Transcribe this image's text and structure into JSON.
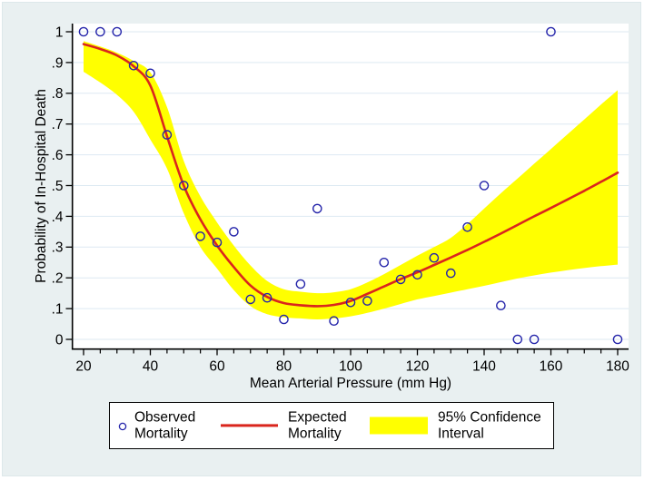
{
  "figure": {
    "canvas_color": "#e9f0f1",
    "page_color": "#ffffff"
  },
  "chart_data": {
    "type": "scatter",
    "title": "",
    "xlabel": "Mean Arterial Pressure (mm Hg)",
    "ylabel": "Probability of In-Hospital Death",
    "xlim": [
      16.5,
      183.3
    ],
    "ylim": [
      -0.03,
      1.027
    ],
    "x_major_ticks": [
      20,
      40,
      60,
      80,
      100,
      120,
      140,
      160,
      180
    ],
    "x_minor_tick_step": 5,
    "y_ticks": [
      0,
      0.1,
      0.2,
      0.3,
      0.4,
      0.5,
      0.6,
      0.7,
      0.8,
      0.9,
      1
    ],
    "y_tick_labels": [
      "0",
      ".1",
      ".2",
      ".3",
      ".4",
      ".5",
      ".6",
      ".7",
      ".8",
      ".9",
      "1"
    ],
    "grid": "horizontal",
    "legend_position": "bottom",
    "colors": {
      "plot_bg": "#ffffff",
      "grid": "#dde9f2",
      "axis": "#000000",
      "marker": "#2424aa",
      "line": "#da251d",
      "band": "#ffff00",
      "text": "#000000"
    },
    "series": [
      {
        "name": "Observed Mortality",
        "kind": "scatter",
        "marker": "hollow-circle",
        "points": [
          [
            20,
            1
          ],
          [
            25,
            1
          ],
          [
            30,
            1
          ],
          [
            35,
            0.89
          ],
          [
            40,
            0.865
          ],
          [
            45,
            0.665
          ],
          [
            50,
            0.5
          ],
          [
            55,
            0.335
          ],
          [
            60,
            0.315
          ],
          [
            65,
            0.35
          ],
          [
            70,
            0.13
          ],
          [
            75,
            0.135
          ],
          [
            80,
            0.065
          ],
          [
            85,
            0.18
          ],
          [
            90,
            0.425
          ],
          [
            95,
            0.06
          ],
          [
            100,
            0.12
          ],
          [
            105,
            0.125
          ],
          [
            110,
            0.25
          ],
          [
            115,
            0.195
          ],
          [
            120,
            0.21
          ],
          [
            125,
            0.265
          ],
          [
            130,
            0.215
          ],
          [
            135,
            0.365
          ],
          [
            140,
            0.5
          ],
          [
            145,
            0.11
          ],
          [
            150,
            0
          ],
          [
            155,
            0
          ],
          [
            160,
            1
          ],
          [
            180,
            0
          ]
        ]
      },
      {
        "name": "Expected Mortality",
        "kind": "line",
        "points": [
          [
            20,
            0.96
          ],
          [
            25,
            0.944
          ],
          [
            30,
            0.923
          ],
          [
            35,
            0.888
          ],
          [
            40,
            0.825
          ],
          [
            45,
            0.66
          ],
          [
            50,
            0.5
          ],
          [
            55,
            0.39
          ],
          [
            60,
            0.305
          ],
          [
            65,
            0.235
          ],
          [
            70,
            0.175
          ],
          [
            75,
            0.138
          ],
          [
            80,
            0.118
          ],
          [
            85,
            0.111
          ],
          [
            90,
            0.108
          ],
          [
            95,
            0.112
          ],
          [
            100,
            0.125
          ],
          [
            105,
            0.148
          ],
          [
            110,
            0.172
          ],
          [
            115,
            0.196
          ],
          [
            120,
            0.218
          ],
          [
            125,
            0.242
          ],
          [
            130,
            0.266
          ],
          [
            135,
            0.291
          ],
          [
            140,
            0.317
          ],
          [
            145,
            0.344
          ],
          [
            150,
            0.372
          ],
          [
            155,
            0.4
          ],
          [
            160,
            0.427
          ],
          [
            165,
            0.455
          ],
          [
            170,
            0.483
          ],
          [
            175,
            0.512
          ],
          [
            180,
            0.542
          ]
        ]
      },
      {
        "name": "95% Confidence Interval",
        "kind": "band",
        "upper": [
          [
            20,
            0.97
          ],
          [
            25,
            0.952
          ],
          [
            30,
            0.932
          ],
          [
            35,
            0.905
          ],
          [
            40,
            0.868
          ],
          [
            45,
            0.755
          ],
          [
            50,
            0.58
          ],
          [
            55,
            0.465
          ],
          [
            60,
            0.38
          ],
          [
            65,
            0.305
          ],
          [
            70,
            0.24
          ],
          [
            75,
            0.19
          ],
          [
            80,
            0.163
          ],
          [
            85,
            0.155
          ],
          [
            90,
            0.15
          ],
          [
            95,
            0.153
          ],
          [
            100,
            0.163
          ],
          [
            105,
            0.185
          ],
          [
            110,
            0.212
          ],
          [
            115,
            0.242
          ],
          [
            120,
            0.272
          ],
          [
            125,
            0.3
          ],
          [
            130,
            0.33
          ],
          [
            135,
            0.375
          ],
          [
            140,
            0.425
          ],
          [
            145,
            0.475
          ],
          [
            150,
            0.523
          ],
          [
            155,
            0.571
          ],
          [
            160,
            0.619
          ],
          [
            165,
            0.667
          ],
          [
            170,
            0.715
          ],
          [
            175,
            0.763
          ],
          [
            180,
            0.81
          ]
        ],
        "lower": [
          [
            20,
            0.87
          ],
          [
            25,
            0.835
          ],
          [
            30,
            0.795
          ],
          [
            35,
            0.74
          ],
          [
            40,
            0.65
          ],
          [
            45,
            0.555
          ],
          [
            50,
            0.41
          ],
          [
            55,
            0.3
          ],
          [
            60,
            0.23
          ],
          [
            65,
            0.16
          ],
          [
            70,
            0.108
          ],
          [
            75,
            0.082
          ],
          [
            80,
            0.072
          ],
          [
            85,
            0.068
          ],
          [
            90,
            0.065
          ],
          [
            95,
            0.068
          ],
          [
            100,
            0.075
          ],
          [
            105,
            0.086
          ],
          [
            110,
            0.1
          ],
          [
            115,
            0.115
          ],
          [
            120,
            0.13
          ],
          [
            125,
            0.141
          ],
          [
            130,
            0.152
          ],
          [
            135,
            0.163
          ],
          [
            140,
            0.174
          ],
          [
            145,
            0.186
          ],
          [
            150,
            0.198
          ],
          [
            155,
            0.208
          ],
          [
            160,
            0.217
          ],
          [
            165,
            0.225
          ],
          [
            170,
            0.232
          ],
          [
            175,
            0.238
          ],
          [
            180,
            0.243
          ]
        ]
      }
    ]
  },
  "legend": {
    "entries": [
      {
        "swatch": "circle-marker",
        "line1": "Observed",
        "line2": "Mortality"
      },
      {
        "swatch": "red-line",
        "line1": "Expected",
        "line2": "Mortality"
      },
      {
        "swatch": "yellow-band",
        "line1": "95% Confidence",
        "line2": "Interval"
      }
    ]
  }
}
